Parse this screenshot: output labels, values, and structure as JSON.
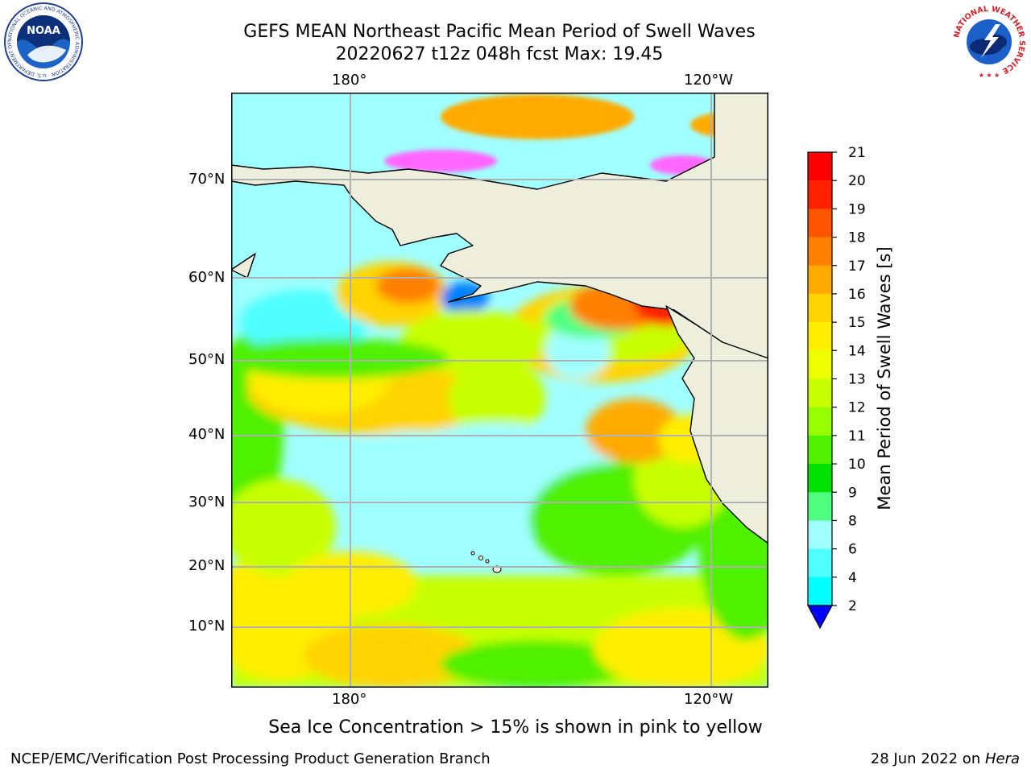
{
  "header": {
    "title_line1": "GEFS MEAN Northeast Pacific Mean Period of Swell Waves",
    "title_line2": "20220627 t12z 048h fcst   Max: 19.45"
  },
  "logos": {
    "left_agency_text": "NATIONAL OCEANIC AND ATMOSPHERIC ADMINISTRATION · U.S. DEPARTMENT OF COMMERCE",
    "left_emblem": "NOAA",
    "right_agency_text": "NATIONAL WEATHER SERVICE"
  },
  "map": {
    "lon_labels_top": [
      "180°",
      "120°W"
    ],
    "lon_labels_bottom": [
      "180°",
      "120°W"
    ],
    "lat_labels": [
      "70°N",
      "60°N",
      "50°N",
      "40°N",
      "30°N",
      "20°N",
      "10°N"
    ],
    "colors": {
      "land": "#eeeedd",
      "grid": "#b0b0b0",
      "coast": "#000000"
    }
  },
  "colorbar": {
    "label": "Mean Period of Swell Waves [s]",
    "ticks": [
      "21",
      "20",
      "19",
      "18",
      "17",
      "16",
      "15",
      "14",
      "13",
      "12",
      "11",
      "10",
      "9",
      "8",
      "6",
      "4",
      "2"
    ],
    "colors": [
      "#ff0000",
      "#ff2200",
      "#ff5500",
      "#ff8000",
      "#ffaa00",
      "#ffd400",
      "#ffee00",
      "#eeff00",
      "#c8ff00",
      "#96ff00",
      "#50f000",
      "#00e000",
      "#50ff80",
      "#a0ffff",
      "#50ffff",
      "#00ffff",
      "#0080ff",
      "#0000ff"
    ]
  },
  "caption": "Sea Ice Concentration > 15% is shown in pink to yellow",
  "footer": {
    "left": "NCEP/EMC/Verification Post Processing Product Generation Branch",
    "right_date": "28 Jun 2022 on ",
    "right_machine": "Hera"
  }
}
